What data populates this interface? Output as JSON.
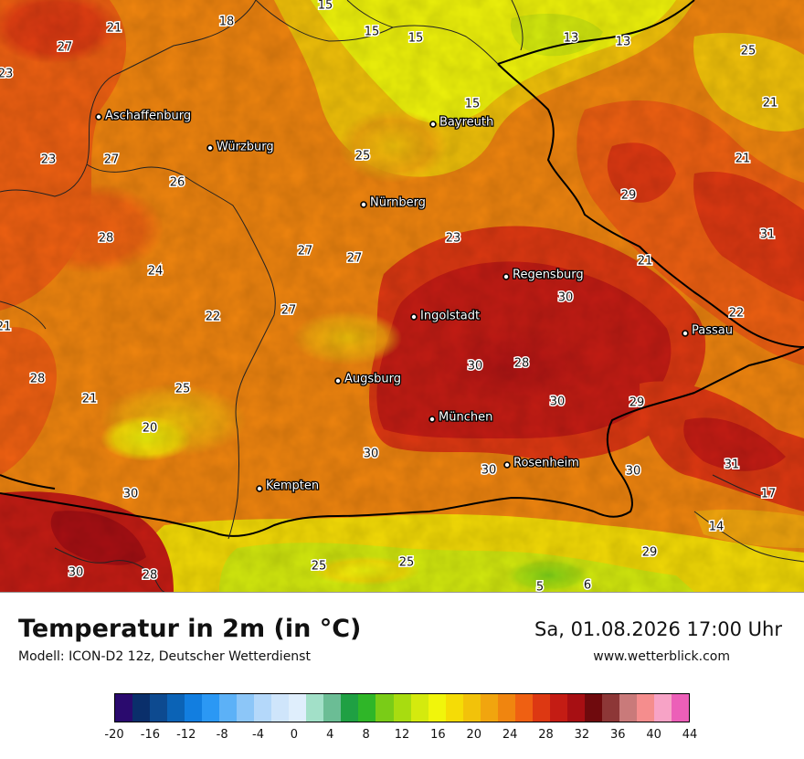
{
  "title": "Temperatur in 2m (in °C)",
  "subtitle": "Modell: ICON-D2 12z, Deutscher Wetterdienst",
  "datetime": "Sa, 01.08.2026 17:00 Uhr",
  "website": "www.wetterblick.com",
  "legend": {
    "colors": [
      "#2a0a6e",
      "#0a2f6b",
      "#0d4a90",
      "#0b63b6",
      "#127ee0",
      "#2b98f4",
      "#5cb1f7",
      "#8cc6f8",
      "#b4d8fa",
      "#cfe5fb",
      "#dfeefc",
      "#a2e0c8",
      "#6bbd95",
      "#1fa043",
      "#2fb628",
      "#7acc17",
      "#a8dc10",
      "#d4ea0e",
      "#f1f50b",
      "#f5dc06",
      "#f2c20a",
      "#f1a50e",
      "#f0850f",
      "#ef6012",
      "#dd3812",
      "#c41c14",
      "#a70f13",
      "#6f0a0d",
      "#8d3737",
      "#c97a7a",
      "#f58d8d",
      "#f7a3c6",
      "#ec5fb8"
    ],
    "ticks": [
      "-20",
      "-16",
      "-12",
      "-8",
      "-4",
      "0",
      "4",
      "8",
      "12",
      "16",
      "20",
      "24",
      "28",
      "32",
      "36",
      "40",
      "44"
    ]
  },
  "cities": [
    {
      "name": "Aschaffenburg"
    },
    {
      "name": "Würzburg"
    },
    {
      "name": "Bayreuth"
    },
    {
      "name": "Nürnberg"
    },
    {
      "name": "Regensburg"
    },
    {
      "name": "Ingolstadt"
    },
    {
      "name": "Passau"
    },
    {
      "name": "Augsburg"
    },
    {
      "name": "München"
    },
    {
      "name": "Rosenheim"
    },
    {
      "name": "Kempten"
    }
  ],
  "temperatures": [
    "15",
    "21",
    "18",
    "27",
    "15",
    "15",
    "13",
    "13",
    "25",
    "23",
    "15",
    "21",
    "23",
    "27",
    "25",
    "21",
    "26",
    "29",
    "28",
    "27",
    "27",
    "23",
    "21",
    "31",
    "24",
    "27",
    "30",
    "22",
    "22",
    "21",
    "28",
    "30",
    "28",
    "25",
    "21",
    "30",
    "29",
    "20",
    "30",
    "31",
    "30",
    "30",
    "30",
    "17",
    "14",
    "25",
    "25",
    "29",
    "30",
    "28",
    "6",
    "5"
  ]
}
